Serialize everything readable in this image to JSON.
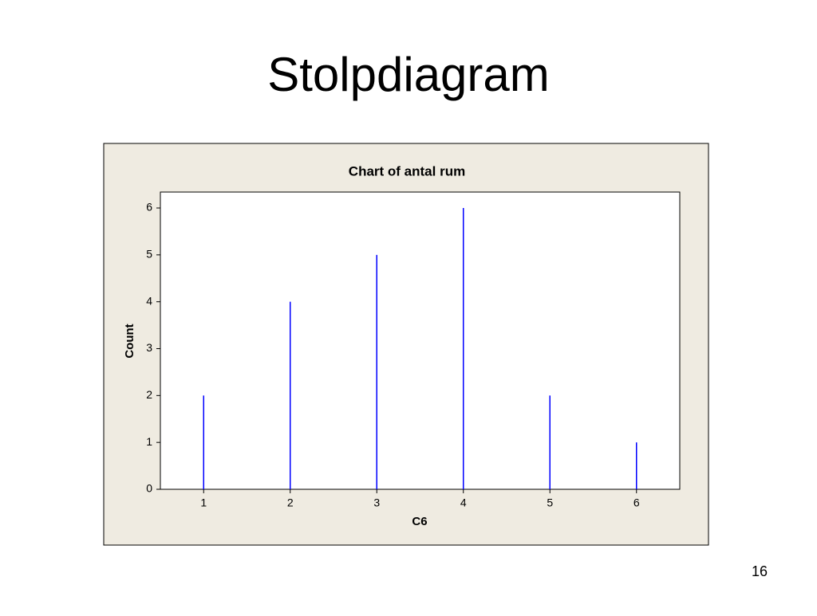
{
  "title": "Stolpdiagram",
  "page_number": "16",
  "chart_data": {
    "type": "bar",
    "title": "Chart of antal rum",
    "x": [
      1,
      2,
      3,
      4,
      5,
      6
    ],
    "values": [
      2,
      4,
      5,
      6,
      2,
      1
    ],
    "color": "#0000ff",
    "xlabel": "C6",
    "ylabel": "Count",
    "xlim": [
      0.5,
      6.5
    ],
    "xticks": [
      1,
      2,
      3,
      4,
      5,
      6
    ],
    "ylim": [
      0,
      6.34
    ],
    "yticks": [
      0,
      1,
      2,
      3,
      4,
      5,
      6
    ]
  }
}
